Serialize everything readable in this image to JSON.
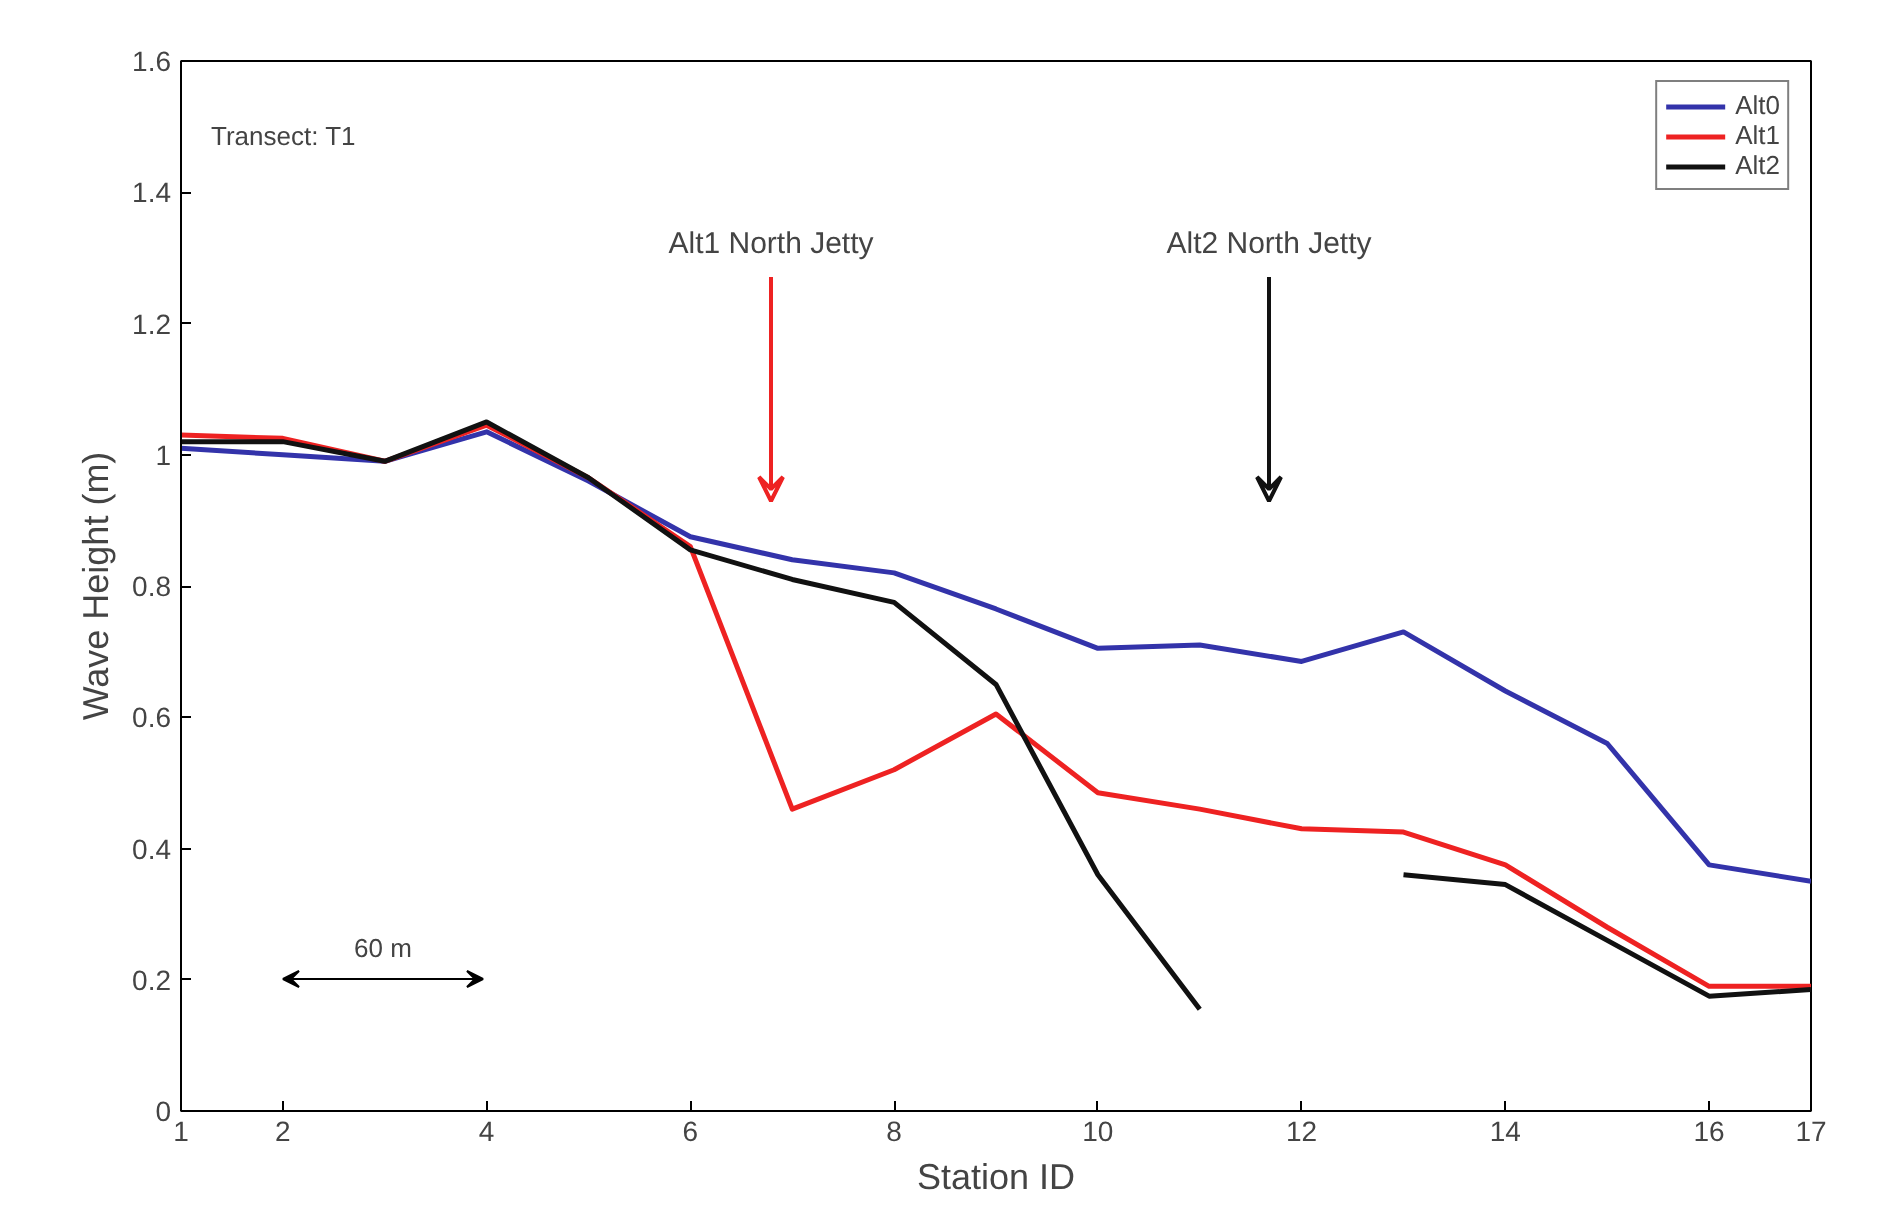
{
  "chart_data": {
    "type": "line",
    "xlabel": "Station ID",
    "ylabel": "Wave Height (m)",
    "x": [
      1,
      2,
      3,
      4,
      5,
      6,
      7,
      8,
      9,
      10,
      11,
      12,
      13,
      14,
      15,
      16,
      17
    ],
    "series": [
      {
        "name": "Alt0",
        "color": "#3333aa",
        "values": [
          1.01,
          1.0,
          0.99,
          1.035,
          0.96,
          0.875,
          0.84,
          0.82,
          0.765,
          0.705,
          0.71,
          0.685,
          0.73,
          0.64,
          0.56,
          0.375,
          0.35
        ]
      },
      {
        "name": "Alt1",
        "color": "#ee2222",
        "values": [
          1.03,
          1.025,
          0.99,
          1.045,
          0.965,
          0.86,
          0.46,
          0.52,
          0.605,
          0.485,
          0.46,
          0.43,
          0.425,
          0.375,
          0.28,
          0.19,
          0.19
        ]
      },
      {
        "name": "Alt2",
        "color": "#111111",
        "values": [
          1.02,
          1.02,
          0.99,
          1.05,
          0.965,
          0.855,
          0.81,
          0.775,
          0.65,
          0.36,
          0.155,
          null,
          0.36,
          0.345,
          0.26,
          0.175,
          0.185
        ]
      }
    ],
    "xlim": [
      1,
      17
    ],
    "ylim": [
      0,
      1.6
    ],
    "xticks": [
      1,
      2,
      4,
      6,
      8,
      10,
      12,
      14,
      16,
      17
    ],
    "yticks": [
      0,
      0.2,
      0.4,
      0.6,
      0.8,
      1,
      1.2,
      1.4,
      1.6
    ],
    "annotations": [
      "Transect: T1",
      "Alt1 North Jetty",
      "Alt2 North Jetty",
      "60 m"
    ],
    "grid": false,
    "legend": "top right",
    "marker": "none",
    "line_style": "solid"
  }
}
